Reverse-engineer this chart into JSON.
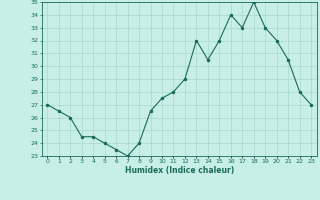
{
  "x": [
    0,
    1,
    2,
    3,
    4,
    5,
    6,
    7,
    8,
    9,
    10,
    11,
    12,
    13,
    14,
    15,
    16,
    17,
    18,
    19,
    20,
    21,
    22,
    23
  ],
  "y": [
    27,
    26.5,
    26,
    24.5,
    24.5,
    24,
    23.5,
    23,
    24,
    26.5,
    27.5,
    28,
    29,
    32,
    30.5,
    32,
    34,
    33,
    35,
    33,
    32,
    30.5,
    28,
    27
  ],
  "title": "",
  "xlabel": "Humidex (Indice chaleur)",
  "ylabel": "",
  "line_color": "#1a6b5a",
  "marker_color": "#1a6b5a",
  "bg_color": "#c8eee8",
  "grid_color": "#aad8d0",
  "ylim": [
    23,
    35
  ],
  "xlim": [
    -0.5,
    23.5
  ],
  "yticks": [
    23,
    24,
    25,
    26,
    27,
    28,
    29,
    30,
    31,
    32,
    33,
    34,
    35
  ],
  "xticks": [
    0,
    1,
    2,
    3,
    4,
    5,
    6,
    7,
    8,
    9,
    10,
    11,
    12,
    13,
    14,
    15,
    16,
    17,
    18,
    19,
    20,
    21,
    22,
    23
  ],
  "xtick_labels": [
    "0",
    "1",
    "2",
    "3",
    "4",
    "5",
    "6",
    "7",
    "8",
    "9",
    "10",
    "11",
    "12",
    "13",
    "14",
    "15",
    "16",
    "17",
    "18",
    "19",
    "20",
    "21",
    "22",
    "23"
  ]
}
